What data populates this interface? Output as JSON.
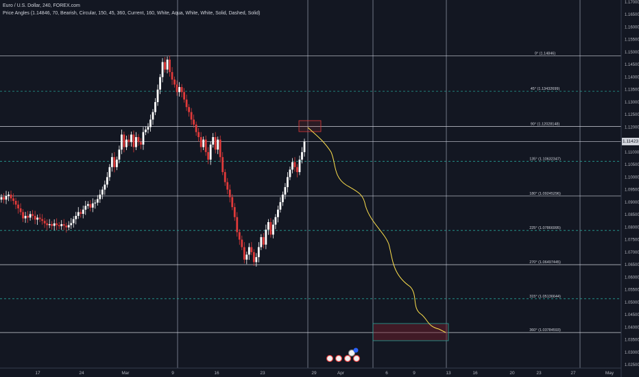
{
  "header": {
    "title": "Euro / U.S. Dollar, 240, FOREX.com",
    "indicator": "Price Angles (1.14846, 70, Bearish, Circular, 150, 45, 360, Current, 160, White, Aqua, White, White, Solid, Dashed, Solid)"
  },
  "current_price": "1.11423",
  "colors": {
    "background": "#131722",
    "bull": "#ffffff",
    "bear": "#e03a3a",
    "projection": "#ffe14d",
    "fib_dashed": "#26a69a",
    "grid": "#363c4e"
  },
  "chart_data": {
    "type": "candlestick",
    "symbol": "EURUSD",
    "timeframe": "240",
    "ylim": [
      1.025,
      1.17
    ],
    "y_ticks": [
      "1.17000",
      "1.16500",
      "1.16000",
      "1.15500",
      "1.15000",
      "1.14500",
      "1.14000",
      "1.13500",
      "1.13000",
      "1.12500",
      "1.12000",
      "1.11500",
      "1.11000",
      "1.10500",
      "1.10000",
      "1.09500",
      "1.09000",
      "1.08500",
      "1.08000",
      "1.07500",
      "1.07000",
      "1.06500",
      "1.06000",
      "1.05500",
      "1.05000",
      "1.04500",
      "1.04000",
      "1.03500",
      "1.03000",
      "1.02500"
    ],
    "x_ticks": [
      "17",
      "24",
      "Mar",
      "9",
      "16",
      "23",
      "29",
      "Apr",
      "6",
      "9",
      "13",
      "16",
      "20",
      "23",
      "27",
      "May"
    ],
    "levels": [
      {
        "label": "0° (1.14846)",
        "value": 1.14846,
        "style": "solid"
      },
      {
        "label": "45° (1.13432699)",
        "value": 1.13432699,
        "style": "dashed"
      },
      {
        "label": "90° (1.12028148)",
        "value": 1.12028148,
        "style": "solid"
      },
      {
        "label": "135° (1.10632347)",
        "value": 1.10632347,
        "style": "dashed"
      },
      {
        "label": "180° (1.09245296)",
        "value": 1.09245296,
        "style": "solid"
      },
      {
        "label": "225° (1.07866995)",
        "value": 1.07866995,
        "style": "dashed"
      },
      {
        "label": "270° (1.06497445)",
        "value": 1.06497445,
        "style": "solid"
      },
      {
        "label": "315° (1.05136644)",
        "value": 1.05136644,
        "style": "dashed"
      },
      {
        "label": "360° (1.03784593)",
        "value": 1.03784593,
        "style": "solid"
      }
    ],
    "current_price_line": 1.11423,
    "closes": [
      1.092,
      1.091,
      1.0925,
      1.093,
      1.0915,
      1.0905,
      1.089,
      1.0875,
      1.086,
      1.0835,
      1.0845,
      1.0838,
      1.0852,
      1.0845,
      1.083,
      1.0838,
      1.0832,
      1.0825,
      1.0815,
      1.0808,
      1.0812,
      1.0805,
      1.0815,
      1.0808,
      1.0804,
      1.0812,
      1.0806,
      1.0799,
      1.0808,
      1.0816,
      1.0832,
      1.0845,
      1.086,
      1.0853,
      1.087,
      1.0885,
      1.0892,
      1.0878,
      1.0895,
      1.0898,
      1.0912,
      1.093,
      1.095,
      1.097,
      1.1,
      1.104,
      1.108,
      1.104,
      1.107,
      1.111,
      1.117,
      1.112,
      1.115,
      1.114,
      1.117,
      1.112,
      1.116,
      1.114,
      1.113,
      1.118,
      1.119,
      1.12,
      1.123,
      1.126,
      1.13,
      1.135,
      1.14,
      1.146,
      1.143,
      1.147,
      1.142,
      1.139,
      1.137,
      1.134,
      1.136,
      1.134,
      1.131,
      1.128,
      1.126,
      1.123,
      1.121,
      1.118,
      1.116,
      1.112,
      1.115,
      1.11,
      1.107,
      1.113,
      1.116,
      1.111,
      1.115,
      1.108,
      1.102,
      1.098,
      1.095,
      1.092,
      1.088,
      1.084,
      1.078,
      1.075,
      1.072,
      1.067,
      1.069,
      1.072,
      1.07,
      1.066,
      1.068,
      1.072,
      1.076,
      1.073,
      1.079,
      1.082,
      1.077,
      1.081,
      1.084,
      1.087,
      1.09,
      1.093,
      1.096,
      1.1,
      1.103,
      1.106,
      1.104,
      1.102,
      1.107,
      1.11,
      1.1142
    ]
  }
}
